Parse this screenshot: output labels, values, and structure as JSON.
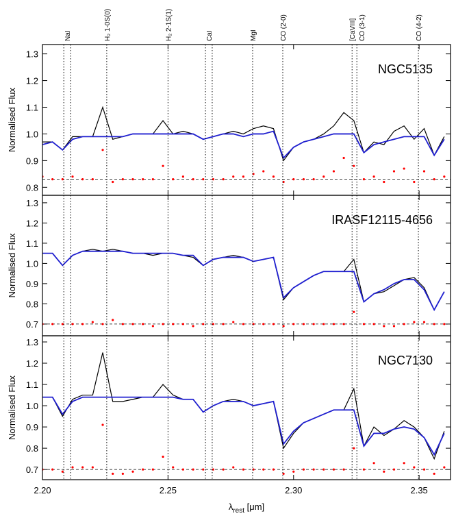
{
  "chart_data": [
    {
      "type": "line",
      "title": "NGC5135",
      "ylabel": "Normalised Flux",
      "annotations": [
        {
          "label": "NaI",
          "lines": [
            2.2085,
            2.2112
          ]
        },
        {
          "label": "H₂ 1-0S(0)",
          "lines": [
            2.2256
          ]
        },
        {
          "label": "H₂ 2-1S(1)",
          "lines": [
            2.25
          ]
        },
        {
          "label": "CaI",
          "lines": [
            2.2649,
            2.2676
          ]
        },
        {
          "label": "MgI",
          "lines": [
            2.2837
          ]
        },
        {
          "label": "CO (2-0)",
          "lines": [
            2.2957
          ]
        },
        {
          "label": "[CaVIII]",
          "lines": [
            2.3233
          ]
        },
        {
          "label": "CO (3-1)",
          "lines": [
            2.3252
          ]
        },
        {
          "label": "CO (4-2)",
          "lines": [
            2.3497
          ]
        }
      ],
      "x": [
        2.2,
        2.204,
        2.208,
        2.212,
        2.216,
        2.22,
        2.224,
        2.228,
        2.232,
        2.236,
        2.24,
        2.244,
        2.248,
        2.252,
        2.256,
        2.26,
        2.264,
        2.268,
        2.272,
        2.276,
        2.28,
        2.284,
        2.288,
        2.292,
        2.296,
        2.3,
        2.304,
        2.308,
        2.312,
        2.316,
        2.32,
        2.324,
        2.328,
        2.332,
        2.336,
        2.34,
        2.344,
        2.348,
        2.352,
        2.356,
        2.36
      ],
      "xlim": [
        2.2,
        2.3625
      ],
      "ylim": [
        0.77,
        1.335
      ],
      "yticks": [
        0.8,
        0.9,
        {
          "value": 1.0,
          "label": "1.0"
        },
        1.1,
        1.2,
        1.3
      ],
      "reference": 0.83,
      "series": [
        {
          "color": "#000000",
          "style": "line",
          "values": [
            0.97,
            0.97,
            0.94,
            0.99,
            0.99,
            0.99,
            1.1,
            0.98,
            0.99,
            1.0,
            1.0,
            1.0,
            1.05,
            1.0,
            1.01,
            1.0,
            0.98,
            0.99,
            1.0,
            1.01,
            1.0,
            1.02,
            1.03,
            1.02,
            0.9,
            0.95,
            0.97,
            0.98,
            1.0,
            1.03,
            1.08,
            1.05,
            0.93,
            0.97,
            0.96,
            1.01,
            1.03,
            0.98,
            1.02,
            0.92,
            0.99
          ]
        },
        {
          "color": "#1f1fd0",
          "style": "line",
          "values": [
            0.96,
            0.97,
            0.94,
            0.98,
            0.99,
            0.99,
            0.99,
            0.99,
            0.99,
            1.0,
            1.0,
            1.0,
            1.0,
            1.0,
            1.0,
            1.0,
            0.98,
            0.99,
            1.0,
            1.0,
            0.99,
            1.0,
            1.0,
            1.01,
            0.91,
            0.95,
            0.97,
            0.98,
            0.99,
            1.0,
            1.0,
            1.0,
            0.93,
            0.96,
            0.97,
            0.98,
            0.99,
            0.99,
            0.99,
            0.92,
            0.98
          ]
        },
        {
          "color": "#ff0000",
          "style": "dots",
          "values": [
            0.84,
            0.83,
            0.83,
            0.84,
            0.83,
            0.83,
            0.94,
            0.82,
            0.83,
            0.83,
            0.83,
            0.83,
            0.88,
            0.83,
            0.84,
            0.83,
            0.83,
            0.83,
            0.83,
            0.84,
            0.84,
            0.85,
            0.86,
            0.84,
            0.82,
            0.83,
            0.83,
            0.83,
            0.84,
            0.86,
            0.91,
            0.88,
            0.83,
            0.84,
            0.82,
            0.86,
            0.87,
            0.82,
            0.86,
            0.83,
            0.84
          ]
        }
      ]
    },
    {
      "type": "line",
      "title": "IRASF12115-4656",
      "ylabel": "Normalised Flux",
      "x": [
        2.2,
        2.204,
        2.208,
        2.212,
        2.216,
        2.22,
        2.224,
        2.228,
        2.232,
        2.236,
        2.24,
        2.244,
        2.248,
        2.252,
        2.256,
        2.26,
        2.264,
        2.268,
        2.272,
        2.276,
        2.28,
        2.284,
        2.288,
        2.292,
        2.296,
        2.3,
        2.304,
        2.308,
        2.312,
        2.316,
        2.32,
        2.324,
        2.328,
        2.332,
        2.336,
        2.34,
        2.344,
        2.348,
        2.352,
        2.356,
        2.36
      ],
      "xlim": [
        2.2,
        2.3625
      ],
      "ylim": [
        0.642,
        1.337
      ],
      "yticks": [
        0.7,
        0.8,
        0.9,
        {
          "value": 1.0,
          "label": "1.0"
        },
        1.1,
        1.2,
        1.3
      ],
      "reference": 0.7,
      "series": [
        {
          "color": "#000000",
          "style": "line",
          "values": [
            1.05,
            1.05,
            0.99,
            1.04,
            1.06,
            1.07,
            1.06,
            1.07,
            1.06,
            1.05,
            1.05,
            1.04,
            1.05,
            1.05,
            1.04,
            1.03,
            0.99,
            1.02,
            1.03,
            1.04,
            1.03,
            1.01,
            1.02,
            1.03,
            0.82,
            0.88,
            0.91,
            0.94,
            0.96,
            0.96,
            0.96,
            1.02,
            0.81,
            0.85,
            0.86,
            0.89,
            0.92,
            0.93,
            0.88,
            0.77,
            0.86
          ]
        },
        {
          "color": "#1f1fd0",
          "style": "line",
          "values": [
            1.05,
            1.05,
            0.99,
            1.04,
            1.06,
            1.06,
            1.06,
            1.06,
            1.06,
            1.05,
            1.05,
            1.05,
            1.05,
            1.05,
            1.04,
            1.04,
            0.99,
            1.02,
            1.03,
            1.03,
            1.03,
            1.01,
            1.02,
            1.03,
            0.83,
            0.88,
            0.91,
            0.94,
            0.96,
            0.96,
            0.96,
            0.96,
            0.81,
            0.85,
            0.87,
            0.9,
            0.92,
            0.92,
            0.87,
            0.77,
            0.86
          ]
        },
        {
          "color": "#ff0000",
          "style": "dots",
          "values": [
            0.7,
            0.7,
            0.7,
            0.7,
            0.7,
            0.71,
            0.7,
            0.72,
            0.7,
            0.7,
            0.7,
            0.69,
            0.7,
            0.7,
            0.7,
            0.69,
            0.7,
            0.7,
            0.7,
            0.71,
            0.7,
            0.7,
            0.7,
            0.7,
            0.69,
            0.7,
            0.7,
            0.7,
            0.7,
            0.7,
            0.7,
            0.76,
            0.7,
            0.7,
            0.69,
            0.69,
            0.7,
            0.71,
            0.71,
            0.7,
            0.7
          ]
        }
      ]
    },
    {
      "type": "line",
      "title": "NGC7130",
      "ylabel": "Normalised Flux",
      "xlabel": {
        "symbol": "λ",
        "subscript": "rest",
        "unit": "[μm]"
      },
      "x": [
        2.2,
        2.204,
        2.208,
        2.212,
        2.216,
        2.22,
        2.224,
        2.228,
        2.232,
        2.236,
        2.24,
        2.244,
        2.248,
        2.252,
        2.256,
        2.26,
        2.264,
        2.268,
        2.272,
        2.276,
        2.28,
        2.284,
        2.288,
        2.292,
        2.296,
        2.3,
        2.304,
        2.308,
        2.312,
        2.316,
        2.32,
        2.324,
        2.328,
        2.332,
        2.336,
        2.34,
        2.344,
        2.348,
        2.352,
        2.356,
        2.36
      ],
      "xlim": [
        2.2,
        2.3625
      ],
      "ylim": [
        0.652,
        1.329
      ],
      "xticks": [
        {
          "value": 2.2,
          "label": "2.20"
        },
        2.25,
        {
          "value": 2.3,
          "label": "2.30"
        },
        2.35
      ],
      "yticks": [
        0.7,
        0.8,
        0.9,
        {
          "value": 1.0,
          "label": "1.0"
        },
        1.1,
        1.2,
        1.3
      ],
      "reference": 0.7,
      "series": [
        {
          "color": "#000000",
          "style": "line",
          "values": [
            1.04,
            1.04,
            0.95,
            1.03,
            1.05,
            1.05,
            1.25,
            1.02,
            1.02,
            1.03,
            1.04,
            1.04,
            1.1,
            1.05,
            1.03,
            1.03,
            0.97,
            1.0,
            1.02,
            1.03,
            1.02,
            1.0,
            1.01,
            1.02,
            0.8,
            0.87,
            0.92,
            0.94,
            0.96,
            0.98,
            0.98,
            1.08,
            0.81,
            0.9,
            0.86,
            0.89,
            0.93,
            0.9,
            0.85,
            0.75,
            0.88
          ]
        },
        {
          "color": "#1f1fd0",
          "style": "line",
          "values": [
            1.04,
            1.04,
            0.96,
            1.02,
            1.04,
            1.04,
            1.04,
            1.04,
            1.04,
            1.04,
            1.04,
            1.04,
            1.04,
            1.04,
            1.03,
            1.03,
            0.97,
            1.0,
            1.02,
            1.02,
            1.02,
            1.0,
            1.01,
            1.02,
            0.82,
            0.88,
            0.92,
            0.94,
            0.96,
            0.98,
            0.98,
            0.98,
            0.81,
            0.87,
            0.87,
            0.89,
            0.9,
            0.89,
            0.85,
            0.77,
            0.87
          ]
        },
        {
          "color": "#ff0000",
          "style": "dots",
          "values": [
            0.7,
            0.7,
            0.69,
            0.71,
            0.71,
            0.71,
            0.91,
            0.68,
            0.68,
            0.69,
            0.7,
            0.7,
            0.76,
            0.71,
            0.7,
            0.7,
            0.7,
            0.7,
            0.7,
            0.71,
            0.7,
            0.7,
            0.7,
            0.7,
            0.68,
            0.69,
            0.7,
            0.7,
            0.7,
            0.7,
            0.7,
            0.8,
            0.7,
            0.73,
            0.69,
            0.7,
            0.73,
            0.71,
            0.7,
            0.68,
            0.71
          ]
        }
      ]
    }
  ]
}
